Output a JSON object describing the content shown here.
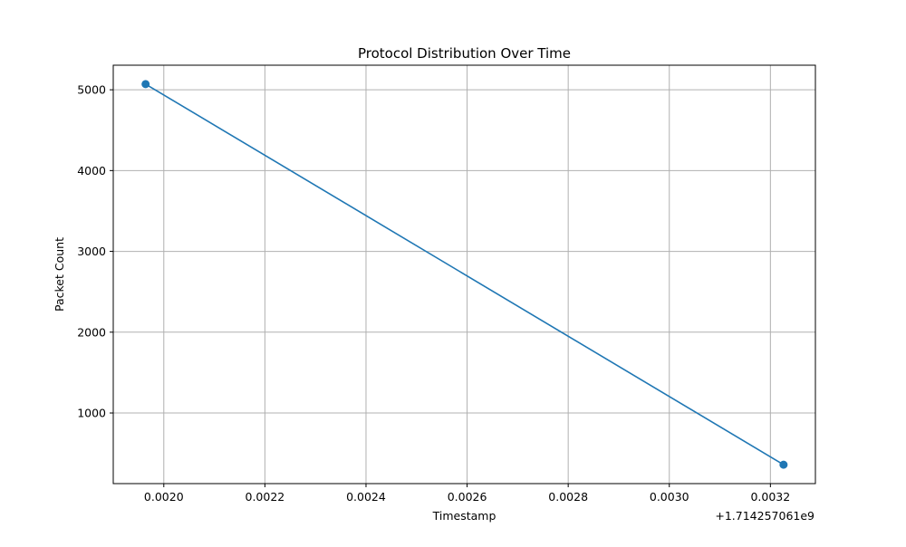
{
  "chart_data": {
    "type": "line",
    "title": "Protocol Distribution Over Time",
    "xlabel": "Timestamp",
    "ylabel": "Packet Count",
    "x_offset_label": "+1.714257061e9",
    "x_ticks": [
      0.002,
      0.0022,
      0.0024,
      0.0026,
      0.0028,
      0.003,
      0.0032
    ],
    "x_tick_labels": [
      "0.0020",
      "0.0022",
      "0.0024",
      "0.0026",
      "0.0028",
      "0.0030",
      "0.0032"
    ],
    "y_ticks": [
      1000,
      2000,
      3000,
      4000,
      5000
    ],
    "y_tick_labels": [
      "1000",
      "2000",
      "3000",
      "4000",
      "5000"
    ],
    "xlim": [
      0.0019,
      0.003289
    ],
    "ylim": [
      126,
      5304
    ],
    "grid": true,
    "series": [
      {
        "x": [
          0.001964,
          0.003226
        ],
        "y": [
          5070,
          360
        ],
        "color": "#1f77b4",
        "marker": "circle"
      }
    ]
  }
}
